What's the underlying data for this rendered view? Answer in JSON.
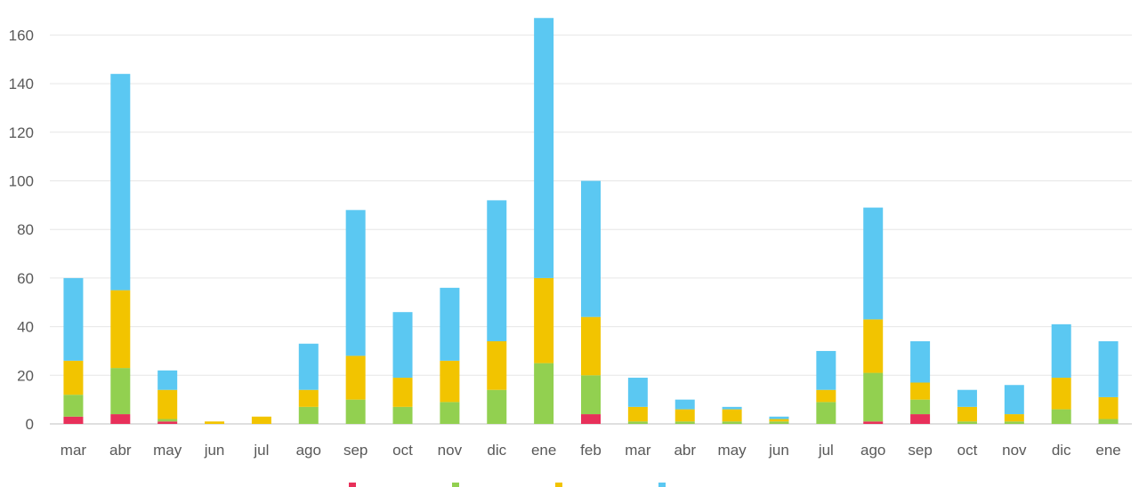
{
  "chart_data": {
    "type": "bar",
    "stacked": true,
    "categories": [
      "mar",
      "abr",
      "may",
      "jun",
      "jul",
      "ago",
      "sep",
      "oct",
      "nov",
      "dic",
      "ene",
      "feb",
      "mar",
      "abr",
      "may",
      "jun",
      "jul",
      "ago",
      "sep",
      "oct",
      "nov",
      "dic",
      "ene"
    ],
    "ylim": [
      0,
      170
    ],
    "yticks": [
      0,
      20,
      40,
      60,
      80,
      100,
      120,
      140,
      160
    ],
    "grid": true,
    "legend_position": "bottom",
    "series": [
      {
        "color": "#e8305a",
        "values": [
          3,
          4,
          1,
          0,
          0,
          0,
          0,
          0,
          0,
          0,
          0,
          4,
          0,
          0,
          0,
          0,
          0,
          1,
          4,
          0,
          0,
          0,
          0
        ]
      },
      {
        "color": "#92d050",
        "values": [
          9,
          19,
          1,
          0,
          0,
          7,
          10,
          7,
          9,
          14,
          25,
          16,
          1,
          1,
          1,
          1,
          9,
          20,
          6,
          1,
          1,
          6,
          2
        ]
      },
      {
        "color": "#f2c400",
        "values": [
          14,
          32,
          12,
          1,
          3,
          7,
          18,
          12,
          17,
          20,
          35,
          24,
          6,
          5,
          5,
          1,
          5,
          22,
          7,
          6,
          3,
          13,
          9
        ]
      },
      {
        "color": "#5bc8f2",
        "values": [
          34,
          89,
          8,
          0,
          0,
          19,
          60,
          27,
          30,
          58,
          107,
          56,
          12,
          4,
          1,
          1,
          16,
          46,
          17,
          7,
          12,
          22,
          23
        ]
      }
    ]
  }
}
